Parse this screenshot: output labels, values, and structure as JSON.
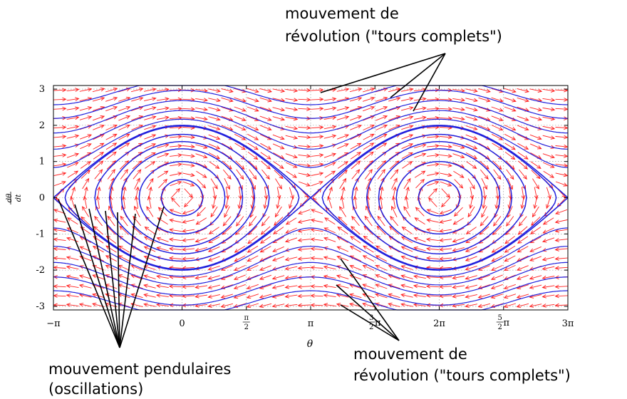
{
  "chart_data": {
    "type": "phase-portrait",
    "system": "dθ/dt = ω, dω/dt = -sin θ",
    "xlabel": "θ",
    "ylabel_num": "dθ",
    "ylabel_den": "dt",
    "xlim": [
      -3.14159,
      9.42478
    ],
    "ylim": [
      -3.1,
      3.1
    ],
    "x_ticks": [
      {
        "value": -3.14159,
        "label": "−π"
      },
      {
        "value": 0,
        "label": "0"
      },
      {
        "value": 1.5708,
        "label": "π/2"
      },
      {
        "value": 3.14159,
        "label": "π"
      },
      {
        "value": 4.71239,
        "label": "3/2π"
      },
      {
        "value": 6.28319,
        "label": "2π"
      },
      {
        "value": 7.85398,
        "label": "5/2π"
      },
      {
        "value": 9.42478,
        "label": "3π"
      }
    ],
    "y_ticks": [
      -3,
      -2,
      -1,
      0,
      1,
      2,
      3
    ],
    "grid": true,
    "vector_field_color": "#ff2020",
    "trajectory_color": "#2020dd",
    "oscillation_amplitudes": [
      0.5,
      1.0,
      1.35,
      1.55,
      1.75,
      1.98
    ],
    "separatrix_energy": 2.0,
    "revolution_energies": [
      2.35,
      2.9,
      3.6,
      4.4,
      5.3
    ],
    "annotations": {
      "top": [
        "mouvement de",
        "révolution (\"tours complets\")"
      ],
      "bottom_right": [
        "mouvement de",
        "révolution (\"tours complets\")"
      ],
      "bottom_left": [
        "mouvement pendulaires",
        "(oscillations)"
      ]
    }
  }
}
